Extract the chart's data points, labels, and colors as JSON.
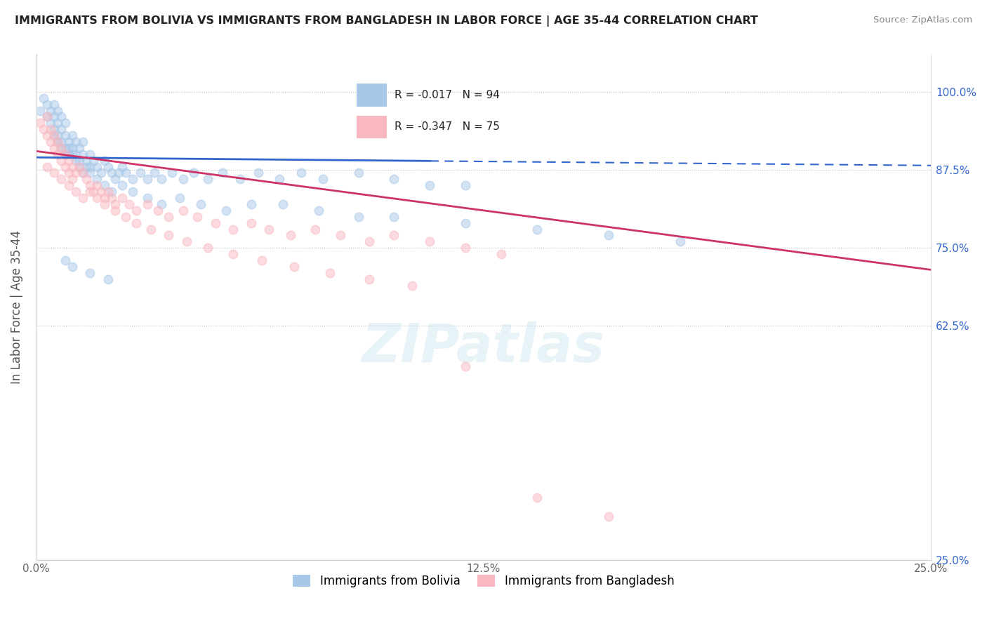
{
  "title": "IMMIGRANTS FROM BOLIVIA VS IMMIGRANTS FROM BANGLADESH IN LABOR FORCE | AGE 35-44 CORRELATION CHART",
  "source": "Source: ZipAtlas.com",
  "ylabel": "In Labor Force | Age 35-44",
  "xlim": [
    0.0,
    0.25
  ],
  "ylim": [
    0.25,
    1.06
  ],
  "xtick_labels": [
    "0.0%",
    "12.5%",
    "25.0%"
  ],
  "xtick_vals": [
    0.0,
    0.125,
    0.25
  ],
  "right_ytick_labels": [
    "100.0%",
    "87.5%",
    "75.0%",
    "62.5%",
    "25.0%"
  ],
  "right_ytick_vals": [
    1.0,
    0.875,
    0.75,
    0.625,
    0.25
  ],
  "bolivia_color": "#a8c8e8",
  "bangladesh_color": "#f9b8c0",
  "bolivia_R": -0.017,
  "bolivia_N": 94,
  "bangladesh_R": -0.347,
  "bangladesh_N": 75,
  "bolivia_line_color": "#3366cc",
  "bangladesh_line_color": "#cc3366",
  "legend_label_bolivia": "Immigrants from Bolivia",
  "legend_label_bangladesh": "Immigrants from Bangladesh",
  "watermark": "ZIPatlas",
  "bolivia_scatter_x": [
    0.001,
    0.002,
    0.003,
    0.003,
    0.004,
    0.004,
    0.005,
    0.005,
    0.005,
    0.006,
    0.006,
    0.006,
    0.007,
    0.007,
    0.007,
    0.008,
    0.008,
    0.008,
    0.009,
    0.009,
    0.01,
    0.01,
    0.011,
    0.011,
    0.012,
    0.012,
    0.013,
    0.013,
    0.014,
    0.015,
    0.015,
    0.016,
    0.017,
    0.018,
    0.019,
    0.02,
    0.021,
    0.022,
    0.023,
    0.024,
    0.025,
    0.027,
    0.029,
    0.031,
    0.033,
    0.035,
    0.038,
    0.041,
    0.044,
    0.048,
    0.052,
    0.057,
    0.062,
    0.068,
    0.074,
    0.08,
    0.09,
    0.1,
    0.11,
    0.12,
    0.005,
    0.006,
    0.007,
    0.008,
    0.009,
    0.01,
    0.011,
    0.012,
    0.013,
    0.014,
    0.015,
    0.017,
    0.019,
    0.021,
    0.024,
    0.027,
    0.031,
    0.035,
    0.04,
    0.046,
    0.053,
    0.06,
    0.069,
    0.079,
    0.09,
    0.1,
    0.12,
    0.14,
    0.16,
    0.18,
    0.008,
    0.01,
    0.015,
    0.02
  ],
  "bolivia_scatter_y": [
    0.97,
    0.99,
    0.96,
    0.98,
    0.95,
    0.97,
    0.94,
    0.96,
    0.98,
    0.93,
    0.95,
    0.97,
    0.92,
    0.94,
    0.96,
    0.91,
    0.93,
    0.95,
    0.9,
    0.92,
    0.91,
    0.93,
    0.9,
    0.92,
    0.89,
    0.91,
    0.9,
    0.92,
    0.89,
    0.9,
    0.88,
    0.89,
    0.88,
    0.87,
    0.89,
    0.88,
    0.87,
    0.86,
    0.87,
    0.88,
    0.87,
    0.86,
    0.87,
    0.86,
    0.87,
    0.86,
    0.87,
    0.86,
    0.87,
    0.86,
    0.87,
    0.86,
    0.87,
    0.86,
    0.87,
    0.86,
    0.87,
    0.86,
    0.85,
    0.85,
    0.93,
    0.92,
    0.91,
    0.9,
    0.91,
    0.9,
    0.89,
    0.88,
    0.87,
    0.88,
    0.87,
    0.86,
    0.85,
    0.84,
    0.85,
    0.84,
    0.83,
    0.82,
    0.83,
    0.82,
    0.81,
    0.82,
    0.82,
    0.81,
    0.8,
    0.8,
    0.79,
    0.78,
    0.77,
    0.76,
    0.73,
    0.72,
    0.71,
    0.7
  ],
  "bangladesh_scatter_x": [
    0.001,
    0.002,
    0.003,
    0.003,
    0.004,
    0.004,
    0.005,
    0.005,
    0.006,
    0.006,
    0.007,
    0.007,
    0.008,
    0.008,
    0.009,
    0.009,
    0.01,
    0.01,
    0.011,
    0.012,
    0.013,
    0.014,
    0.015,
    0.016,
    0.017,
    0.018,
    0.019,
    0.02,
    0.021,
    0.022,
    0.024,
    0.026,
    0.028,
    0.031,
    0.034,
    0.037,
    0.041,
    0.045,
    0.05,
    0.055,
    0.06,
    0.065,
    0.071,
    0.078,
    0.085,
    0.093,
    0.1,
    0.11,
    0.12,
    0.13,
    0.003,
    0.005,
    0.007,
    0.009,
    0.011,
    0.013,
    0.015,
    0.017,
    0.019,
    0.022,
    0.025,
    0.028,
    0.032,
    0.037,
    0.042,
    0.048,
    0.055,
    0.063,
    0.072,
    0.082,
    0.093,
    0.105,
    0.12,
    0.14,
    0.16
  ],
  "bangladesh_scatter_y": [
    0.95,
    0.94,
    0.93,
    0.96,
    0.92,
    0.94,
    0.93,
    0.91,
    0.92,
    0.9,
    0.91,
    0.89,
    0.9,
    0.88,
    0.89,
    0.87,
    0.88,
    0.86,
    0.87,
    0.88,
    0.87,
    0.86,
    0.85,
    0.84,
    0.85,
    0.84,
    0.83,
    0.84,
    0.83,
    0.82,
    0.83,
    0.82,
    0.81,
    0.82,
    0.81,
    0.8,
    0.81,
    0.8,
    0.79,
    0.78,
    0.79,
    0.78,
    0.77,
    0.78,
    0.77,
    0.76,
    0.77,
    0.76,
    0.75,
    0.74,
    0.88,
    0.87,
    0.86,
    0.85,
    0.84,
    0.83,
    0.84,
    0.83,
    0.82,
    0.81,
    0.8,
    0.79,
    0.78,
    0.77,
    0.76,
    0.75,
    0.74,
    0.73,
    0.72,
    0.71,
    0.7,
    0.69,
    0.56,
    0.35,
    0.32
  ],
  "bolivia_line_x0": 0.0,
  "bolivia_line_x1": 0.25,
  "bolivia_line_y0": 0.895,
  "bolivia_line_y1": 0.882,
  "bolivia_line_solid_x1": 0.11,
  "bangladesh_line_x0": 0.0,
  "bangladesh_line_x1": 0.25,
  "bangladesh_line_y0": 0.905,
  "bangladesh_line_y1": 0.715
}
